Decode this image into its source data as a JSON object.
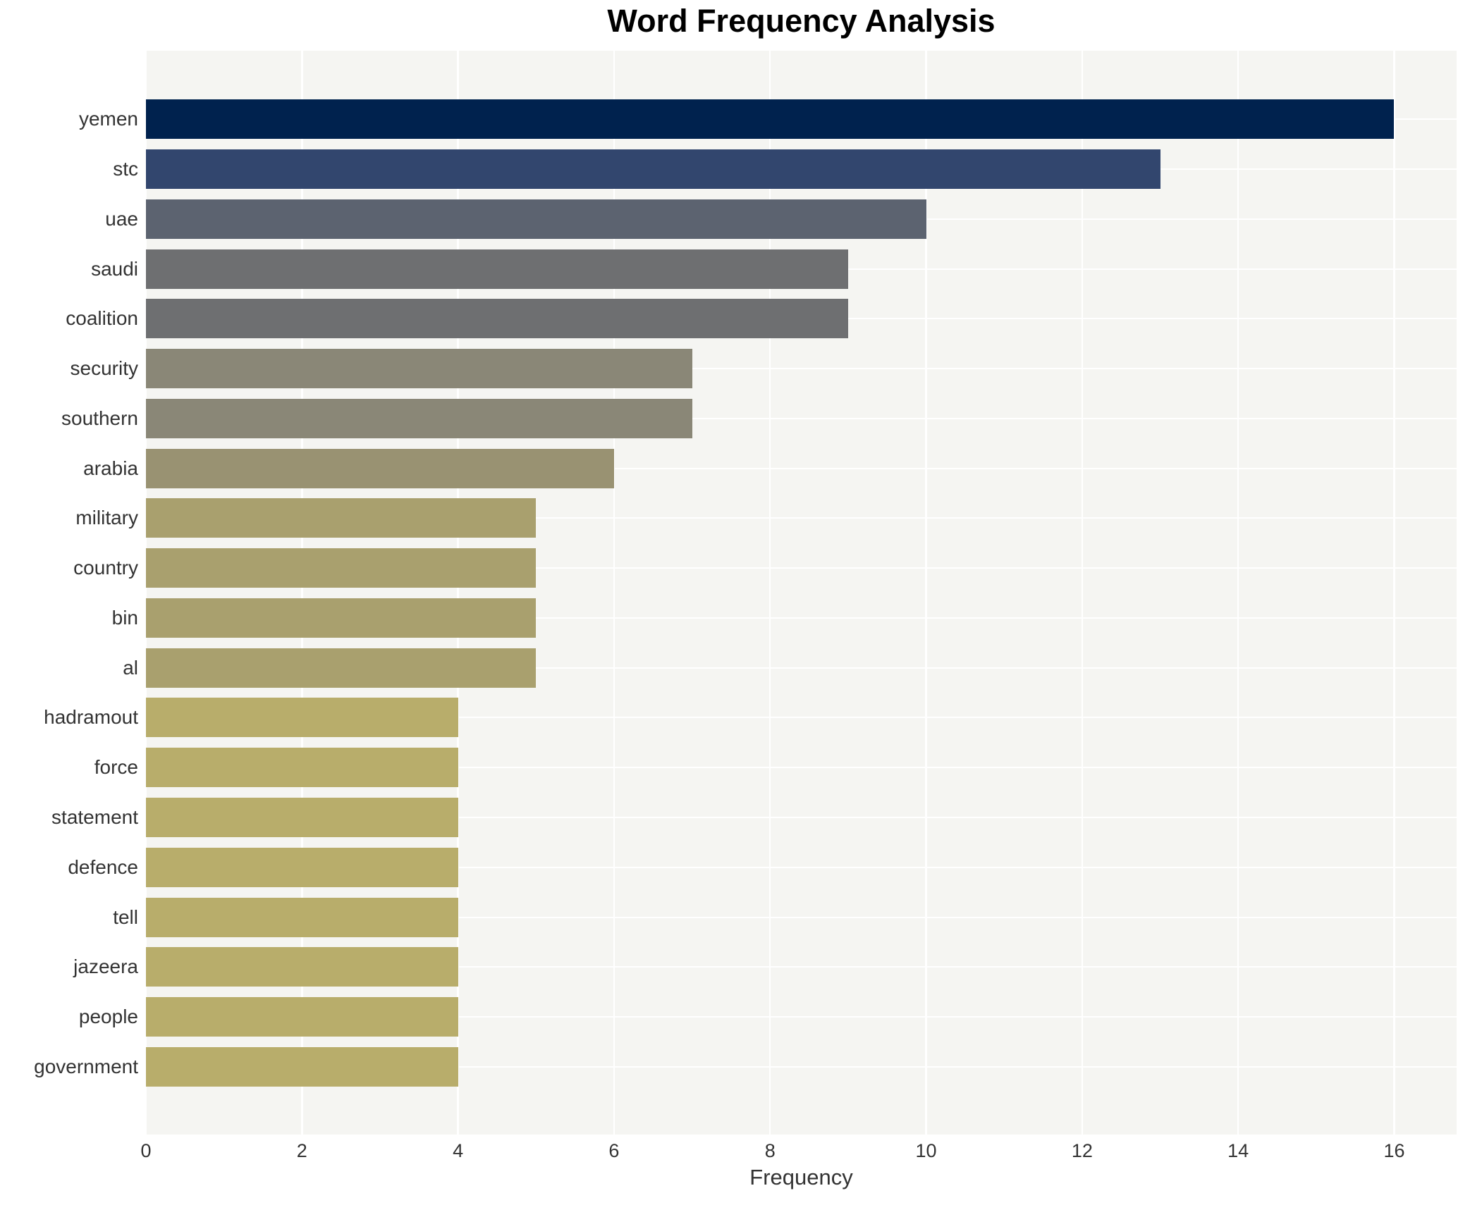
{
  "chart_data": {
    "type": "bar",
    "orientation": "horizontal",
    "title": "Word Frequency Analysis",
    "xlabel": "Frequency",
    "ylabel": "",
    "categories": [
      "yemen",
      "stc",
      "uae",
      "saudi",
      "coalition",
      "security",
      "southern",
      "arabia",
      "military",
      "country",
      "bin",
      "al",
      "hadramout",
      "force",
      "statement",
      "defence",
      "tell",
      "jazeera",
      "people",
      "government"
    ],
    "values": [
      16,
      13,
      10,
      9,
      9,
      7,
      7,
      6,
      5,
      5,
      5,
      5,
      4,
      4,
      4,
      4,
      4,
      4,
      4,
      4
    ],
    "bar_colors": [
      "#00224e",
      "#32466e",
      "#5c6370",
      "#6e6f71",
      "#6e6f71",
      "#8a8777",
      "#8a8777",
      "#999272",
      "#a9a06e",
      "#a9a06e",
      "#a9a06e",
      "#a9a06e",
      "#b8ad6b",
      "#b8ad6b",
      "#b8ad6b",
      "#b8ad6b",
      "#b8ad6b",
      "#b8ad6b",
      "#b8ad6b",
      "#b8ad6b"
    ],
    "x_ticks": [
      0,
      2,
      4,
      6,
      8,
      10,
      12,
      14,
      16
    ],
    "xlim": [
      0,
      16.8
    ],
    "grid": true,
    "legend_position": "none",
    "plot_background": "#f5f5f2",
    "grid_color": "#ffffff",
    "text_color": "#333333",
    "title_color": "#000000"
  }
}
